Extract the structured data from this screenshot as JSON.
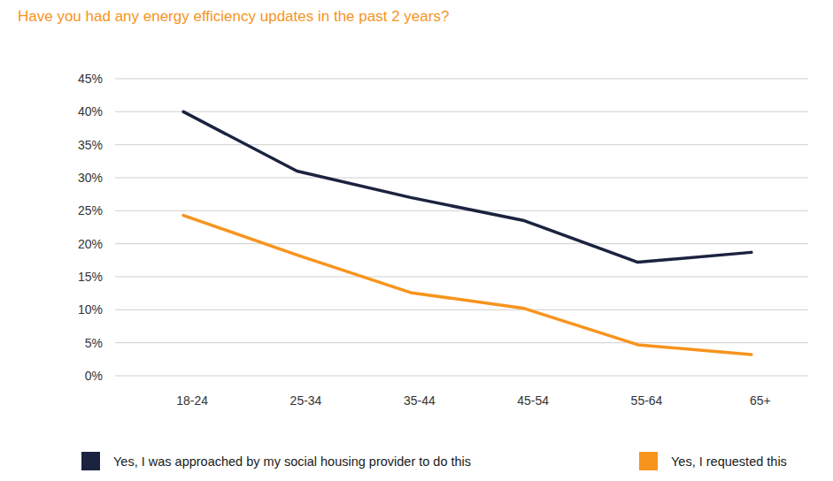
{
  "chart_data": {
    "type": "line",
    "title": "Have you had any energy efficiency updates in the past 2 years?",
    "categories": [
      "18-24",
      "25-34",
      "35-44",
      "45-54",
      "55-64",
      "65+"
    ],
    "series": [
      {
        "name": "Yes, I was approached by my social housing provider to do this",
        "color": "#1c2340",
        "values": [
          40,
          31,
          27,
          23.5,
          17.2,
          18.7
        ]
      },
      {
        "name": "Yes, I requested this",
        "color": "#f7941d",
        "values": [
          24.3,
          18.3,
          12.6,
          10.2,
          4.7,
          3.2
        ]
      }
    ],
    "ylim": [
      0,
      45
    ],
    "yticks": [
      {
        "value": 0,
        "label": "0%"
      },
      {
        "value": 5,
        "label": "5%"
      },
      {
        "value": 10,
        "label": "10%"
      },
      {
        "value": 15,
        "label": "15%"
      },
      {
        "value": 20,
        "label": "20%"
      },
      {
        "value": 25,
        "label": "25%"
      },
      {
        "value": 30,
        "label": "30%"
      },
      {
        "value": 35,
        "label": "35%"
      },
      {
        "value": 40,
        "label": "40%"
      },
      {
        "value": 45,
        "label": "45%"
      }
    ],
    "grid": true,
    "legend": "bottom"
  }
}
